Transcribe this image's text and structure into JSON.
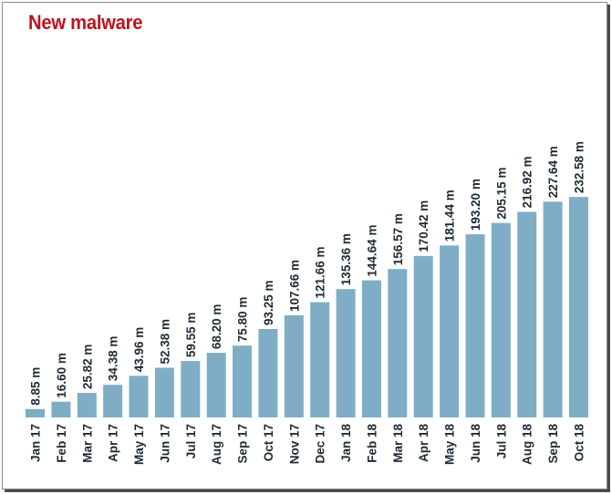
{
  "chart_data": {
    "type": "bar",
    "title": "New malware",
    "xlabel": "",
    "ylabel": "",
    "ylim": [
      0,
      250
    ],
    "grid": false,
    "legend": "none",
    "categories": [
      "Jan 17",
      "Feb 17",
      "Mar 17",
      "Apr 17",
      "May 17",
      "Jun 17",
      "Jul 17",
      "Aug 17",
      "Sep 17",
      "Oct 17",
      "Nov 17",
      "Dec 17",
      "Jan 18",
      "Feb 18",
      "Mar 18",
      "Apr 18",
      "May 18",
      "Jun 18",
      "Jul 18",
      "Aug 18",
      "Sep 18",
      "Oct 18"
    ],
    "values": [
      8.85,
      16.6,
      25.82,
      34.38,
      43.96,
      52.38,
      59.55,
      68.2,
      75.8,
      93.25,
      107.66,
      121.66,
      135.36,
      144.64,
      156.57,
      170.42,
      181.44,
      193.2,
      205.15,
      216.92,
      227.64,
      232.58
    ],
    "value_labels": [
      "8.85 m",
      "16.60 m",
      "25.82 m",
      "34.38 m",
      "43.96 m",
      "52.38 m",
      "59.55 m",
      "68.20 m",
      "75.80 m",
      "93.25 m",
      "107.66 m",
      "121.66 m",
      "135.36 m",
      "144.64 m",
      "156.57 m",
      "170.42 m",
      "181.44 m",
      "193.20 m",
      "205.15 m",
      "216.92 m",
      "227.64 m",
      "232.58 m"
    ],
    "colors": {
      "bar": "#7fadc5",
      "title": "#c0121e",
      "text": "#1e2a33"
    }
  }
}
